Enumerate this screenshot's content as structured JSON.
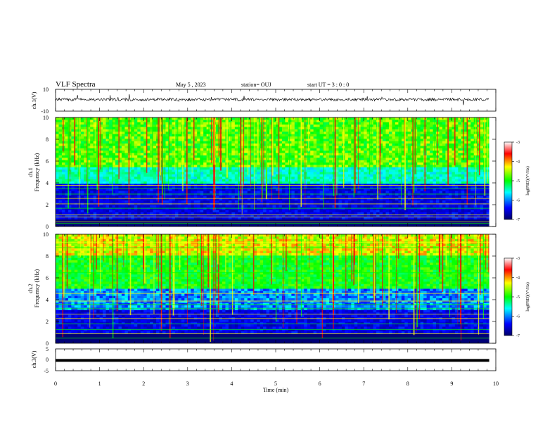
{
  "header": {
    "title": "VLF Spectra",
    "date": "May 5  , 2023",
    "station": "station= OUJ",
    "start_ut": "start  UT =   3  : 0  : 0"
  },
  "chart_data": [
    {
      "type": "line",
      "name": "ch1-waveform",
      "ylabel": "ch.1(V)",
      "ylim": [
        -10,
        10
      ],
      "yticks": [
        "10",
        "-10"
      ],
      "x_range_min": [
        0,
        9.85
      ],
      "baseline_v": 0,
      "description": ""
    },
    {
      "type": "heatmap",
      "name": "ch1-spectrogram",
      "ylabel": "ch.1\nFrequency (kHz)",
      "ylabel_line1": "ch.1",
      "ylabel_line2": "Frequency (kHz)",
      "ylim": [
        0,
        10
      ],
      "yticks": [
        "0",
        "2",
        "4",
        "6",
        "8",
        "10"
      ],
      "x_range_min": [
        0,
        9.85
      ],
      "colorbar": {
        "label": "log(PSD)(V²/Hz)",
        "range": [
          -7,
          -3
        ],
        "ticks": [
          "-3",
          "-4",
          "-5",
          "-6",
          "-7"
        ]
      }
    },
    {
      "type": "heatmap",
      "name": "ch2-spectrogram",
      "ylabel_line1": "ch.2",
      "ylabel_line2": "Frequency (kHz)",
      "ylim": [
        0,
        10
      ],
      "yticks": [
        "0",
        "2",
        "4",
        "6",
        "8",
        "10"
      ],
      "x_range_min": [
        0,
        9.85
      ],
      "colorbar": {
        "label": "log(PSD)(V²/Hz)",
        "range": [
          -7,
          -3
        ],
        "ticks": [
          "-3",
          "-4",
          "-5",
          "-6",
          "-7"
        ]
      }
    },
    {
      "type": "line",
      "name": "ch3-waveform",
      "ylabel": "ch.3(V)",
      "ylim": [
        -5,
        5
      ],
      "yticks": [
        "5",
        "0",
        "-5"
      ],
      "x_range_min": [
        0,
        9.85
      ],
      "baseline_v": -0.3
    }
  ],
  "xaxis": {
    "label": "Time  (min)",
    "ticks": [
      "0",
      "1",
      "2",
      "3",
      "4",
      "5",
      "6",
      "7",
      "8",
      "9",
      "10"
    ],
    "xlim": [
      0,
      10
    ]
  },
  "colors": {
    "background": "#ffffff",
    "axis": "#000000",
    "colormap": [
      "#000066",
      "#0000ff",
      "#00ffff",
      "#00ff00",
      "#ffff00",
      "#ff0000",
      "#ffffff"
    ]
  }
}
